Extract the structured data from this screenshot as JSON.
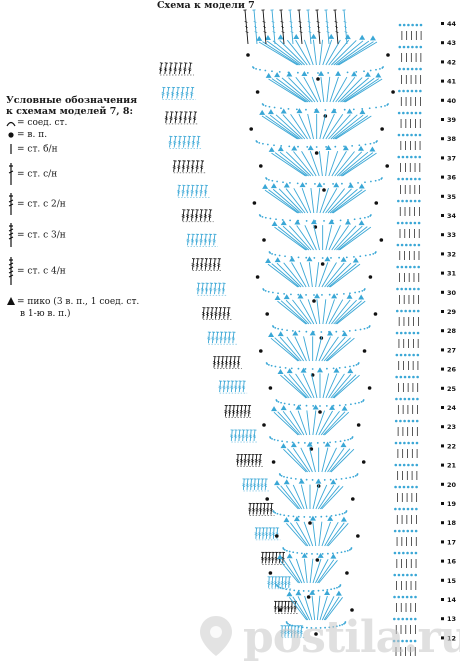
{
  "title": "Схема к модели 7",
  "legend": {
    "heading_line1": "Условные обозначения",
    "heading_line2": "к схемам моделей 7, 8:",
    "items": [
      {
        "symbol": "slip-stitch-icon",
        "label": "= соед. ст."
      },
      {
        "symbol": "chain-icon",
        "label": "= в. п."
      },
      {
        "symbol": "sc-icon",
        "label": "= ст. б/н"
      },
      {
        "symbol": "dc-icon",
        "label": "= ст. с/н"
      },
      {
        "symbol": "tr-icon",
        "label": "= ст. с 2/н"
      },
      {
        "symbol": "dtr-icon",
        "label": "= ст. с 3/н"
      },
      {
        "symbol": "trtr-icon",
        "label": "= ст. с 4/н"
      },
      {
        "symbol": "picot-icon",
        "label": "= пико (3 в. п., 1 соед. ст.",
        "label2": "в 1-ю в. п.)"
      }
    ]
  },
  "row_numbers": [
    "44",
    "43",
    "42",
    "41",
    "40",
    "39",
    "38",
    "37",
    "36",
    "35",
    "34",
    "33",
    "32",
    "31",
    "30",
    "29",
    "28",
    "27",
    "26",
    "25",
    "24",
    "23",
    "22",
    "21",
    "20",
    "19",
    "18",
    "17",
    "16",
    "15",
    "14",
    "13",
    "12"
  ],
  "watermark": "postila.ru",
  "colors": {
    "blue": "#3aa7d6",
    "black": "#111111",
    "watermark": "#c8c8c8"
  }
}
